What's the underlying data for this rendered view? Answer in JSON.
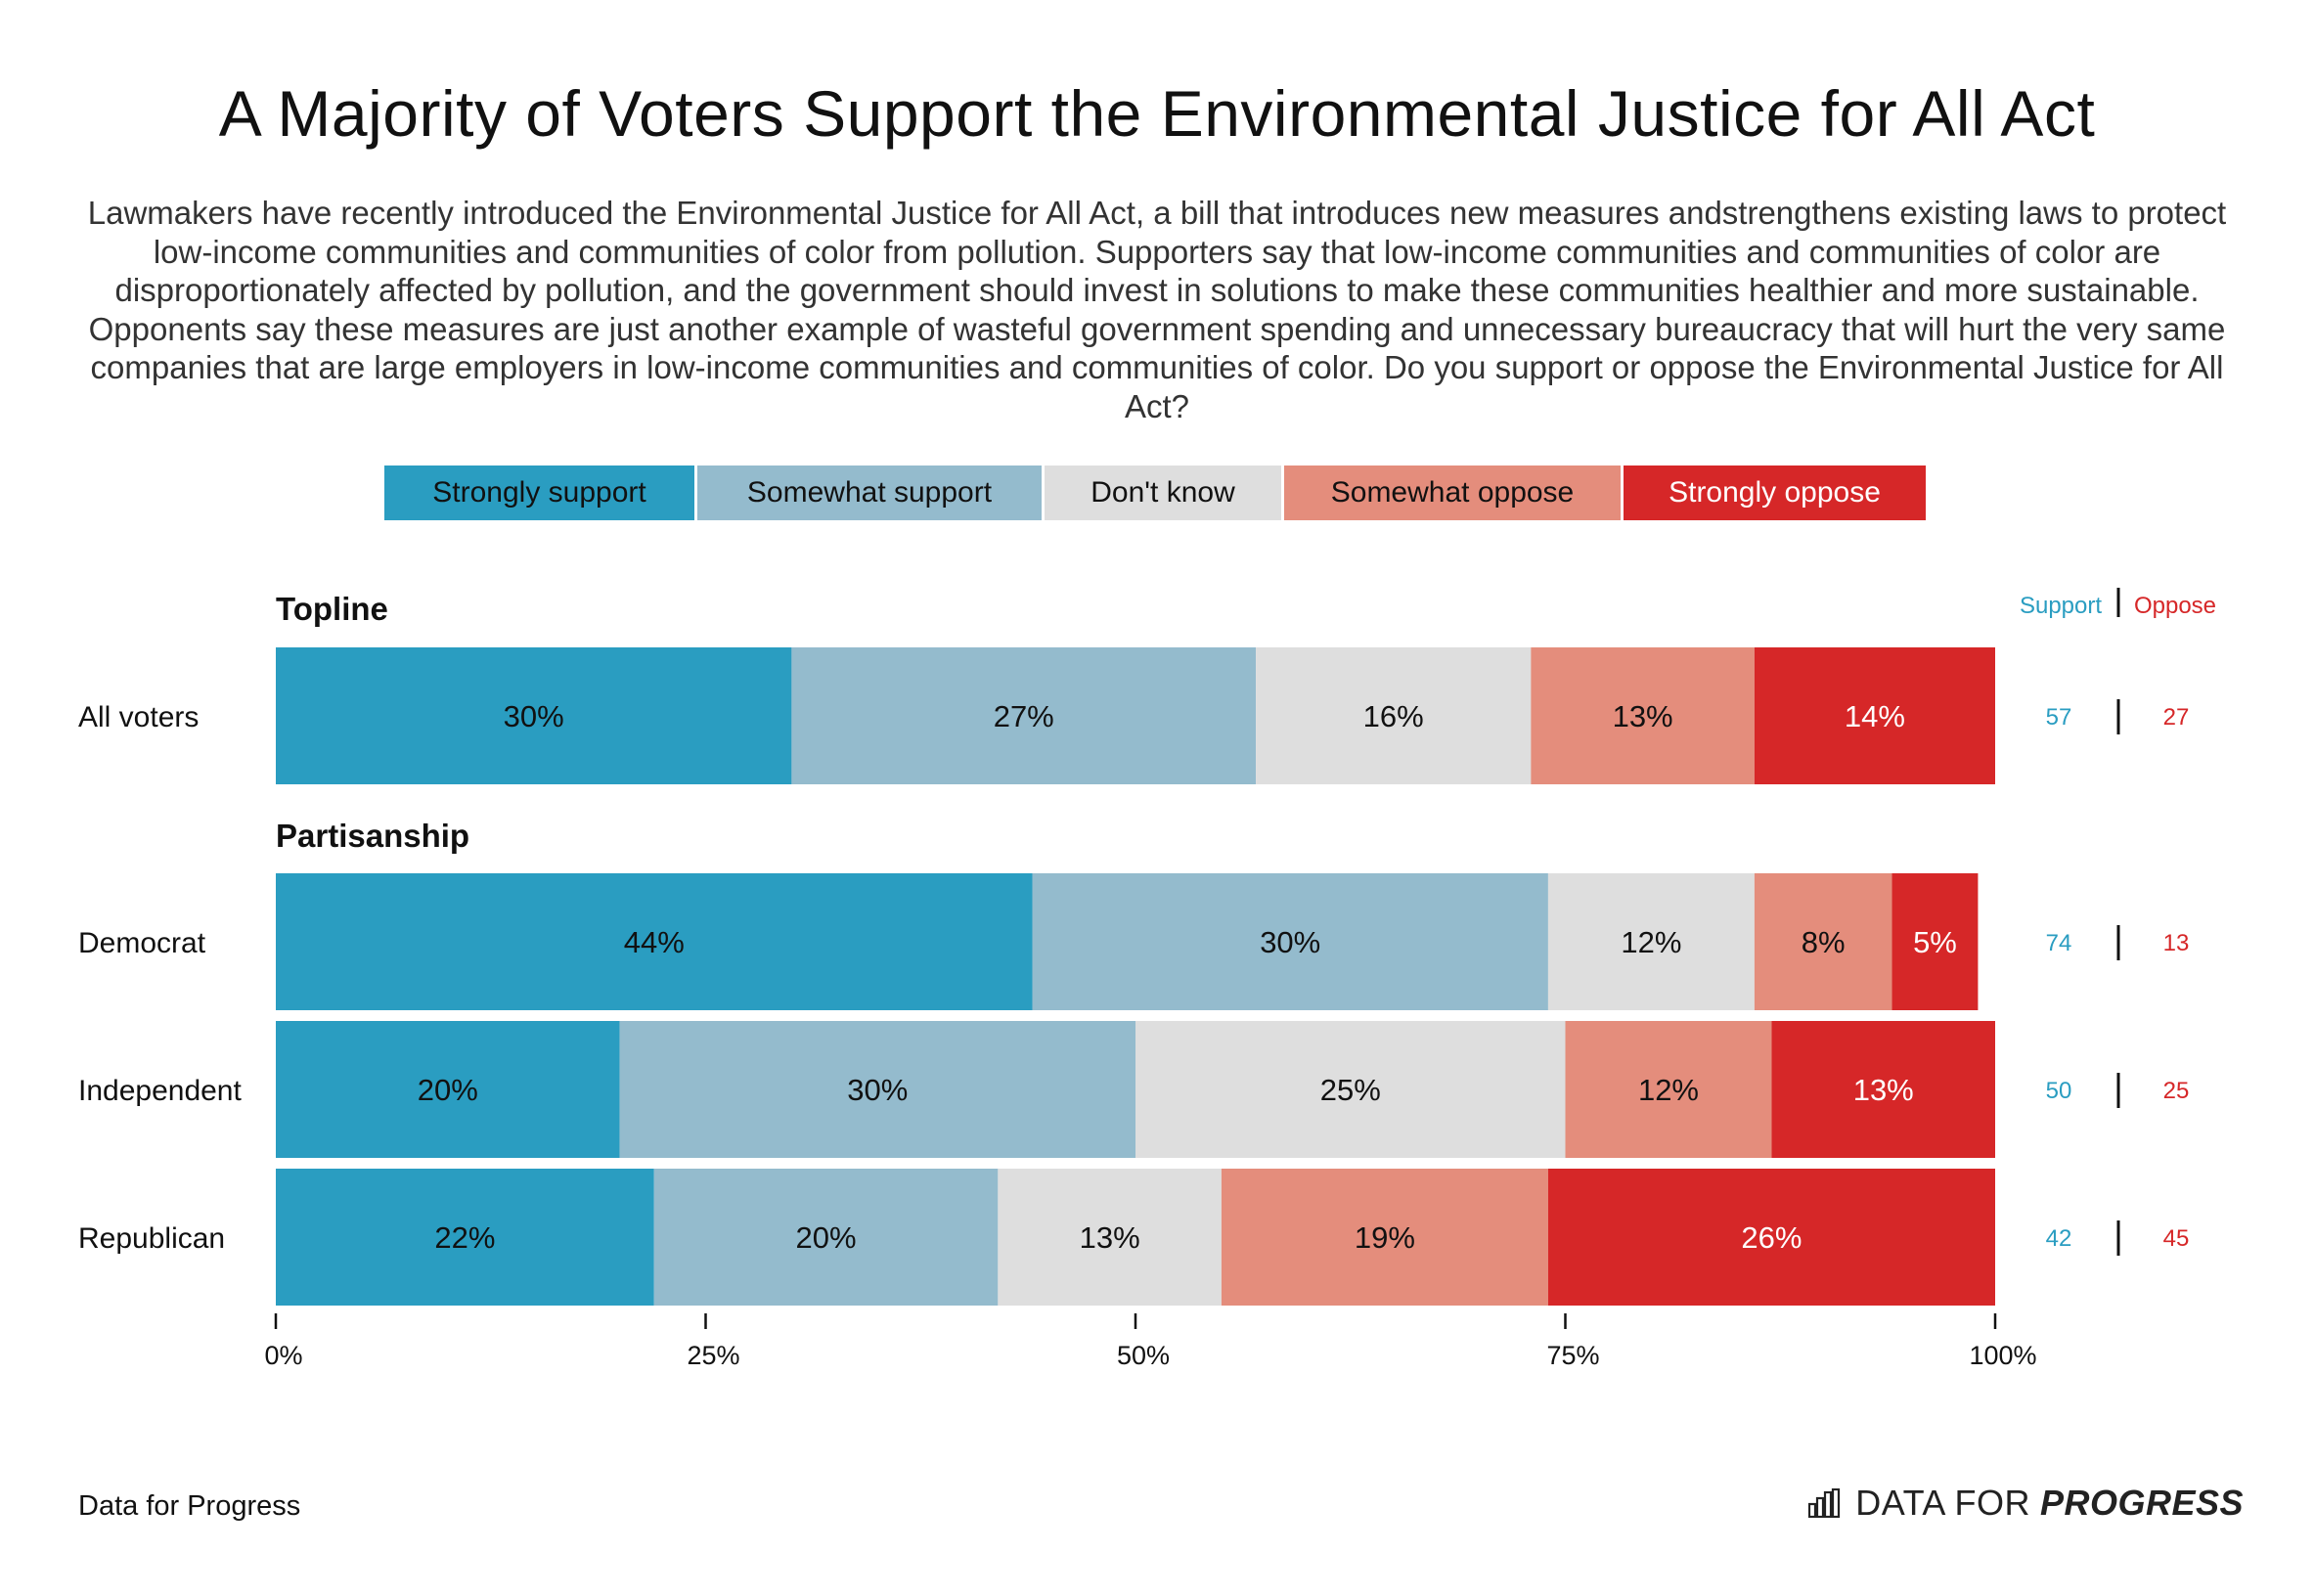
{
  "title": "A Majority of Voters Support the Environmental Justice for All Act",
  "subtitle": "Lawmakers have recently introduced the Environmental Justice for All Act, a bill that introduces new measures andstrengthens existing laws to protect low-income communities and communities of color from pollution. Supporters say that low-income communities and communities of color are disproportionately affected by pollution, and the government should invest in solutions to make these communities healthier and more sustainable. Opponents say these measures are just another example of wasteful government spending and unnecessary bureaucracy that will hurt the very same companies that are large employers in low-income communities and communities of color. Do you support or oppose the Environmental Justice for All Act?",
  "legend": [
    {
      "label": "Strongly support",
      "color": "#2a9dc1",
      "text_color": "#111111"
    },
    {
      "label": "Somewhat support",
      "color": "#94bbcd",
      "text_color": "#111111"
    },
    {
      "label": "Don't know",
      "color": "#dedede",
      "text_color": "#111111"
    },
    {
      "label": "Somewhat oppose",
      "color": "#e48d7c",
      "text_color": "#111111"
    },
    {
      "label": "Strongly oppose",
      "color": "#d62728",
      "text_color": "#ffffff"
    }
  ],
  "support_header": "Support",
  "oppose_header": "Oppose",
  "support_color": "#2a9dc1",
  "oppose_color": "#d62728",
  "chart_data": {
    "type": "bar",
    "orientation": "horizontal",
    "stacked": true,
    "xlim": [
      0,
      100
    ],
    "x_ticks": [
      "0%",
      "25%",
      "50%",
      "75%",
      "100%"
    ],
    "x_tick_values": [
      0,
      25,
      50,
      75,
      100
    ],
    "groups": [
      {
        "label": "Topline",
        "rows": [
          {
            "label": "All voters",
            "values": [
              30,
              27,
              16,
              13,
              14
            ],
            "support": "57",
            "oppose": "27"
          }
        ]
      },
      {
        "label": "Partisanship",
        "rows": [
          {
            "label": "Democrat",
            "values": [
              44,
              30,
              12,
              8,
              5
            ],
            "support": "74",
            "oppose": "13"
          },
          {
            "label": "Independent",
            "values": [
              20,
              30,
              25,
              12,
              13
            ],
            "support": "50",
            "oppose": "25"
          },
          {
            "label": "Republican",
            "values": [
              22,
              20,
              13,
              19,
              26
            ],
            "support": "42",
            "oppose": "45"
          }
        ]
      }
    ],
    "series": [
      "Strongly support",
      "Somewhat support",
      "Don't know",
      "Somewhat oppose",
      "Strongly oppose"
    ]
  },
  "footer": {
    "source": "Data for Progress",
    "brand_part1": "DATA FOR",
    "brand_part2": "PROGRESS"
  }
}
